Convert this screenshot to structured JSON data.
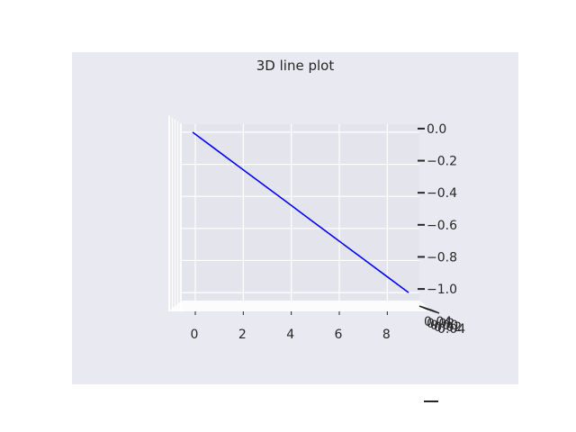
{
  "chart_data": {
    "type": "line",
    "title": "3D line plot",
    "projection": "3d",
    "view": "viewed nearly along the y axis (x horizontal, z vertical)",
    "x": [
      0,
      1,
      2,
      3,
      4,
      5,
      6,
      7,
      8,
      9
    ],
    "y": [
      0,
      0,
      0,
      0,
      0,
      0,
      0,
      0,
      0,
      0
    ],
    "z": [
      0.0,
      -0.111,
      -0.222,
      -0.333,
      -0.444,
      -0.556,
      -0.667,
      -0.778,
      -0.889,
      -1.0
    ],
    "series": [
      {
        "color": "#0000ff"
      }
    ],
    "xlim": [
      -0.45,
      9.45
    ],
    "zlim": [
      -1.05,
      0.05
    ],
    "x_ticks": [
      "0",
      "2",
      "4",
      "6",
      "8"
    ],
    "x_tick_values": [
      0,
      2,
      4,
      6,
      8
    ],
    "z_ticks": [
      "0.0",
      "−0.2",
      "−0.4",
      "−0.6",
      "−0.8",
      "−1.0"
    ],
    "z_tick_values": [
      0.0,
      -0.2,
      -0.4,
      -0.6,
      -0.8,
      -1.0
    ],
    "y_ticks_overlapping": [
      "0.04",
      "0.02",
      "0.00",
      "0.02",
      "0.04"
    ],
    "grid": true,
    "colors": {
      "figure_bg": "#e9e9f1",
      "pane": "#e4e4ec",
      "grid": "#ffffff",
      "text": "#262626"
    }
  }
}
